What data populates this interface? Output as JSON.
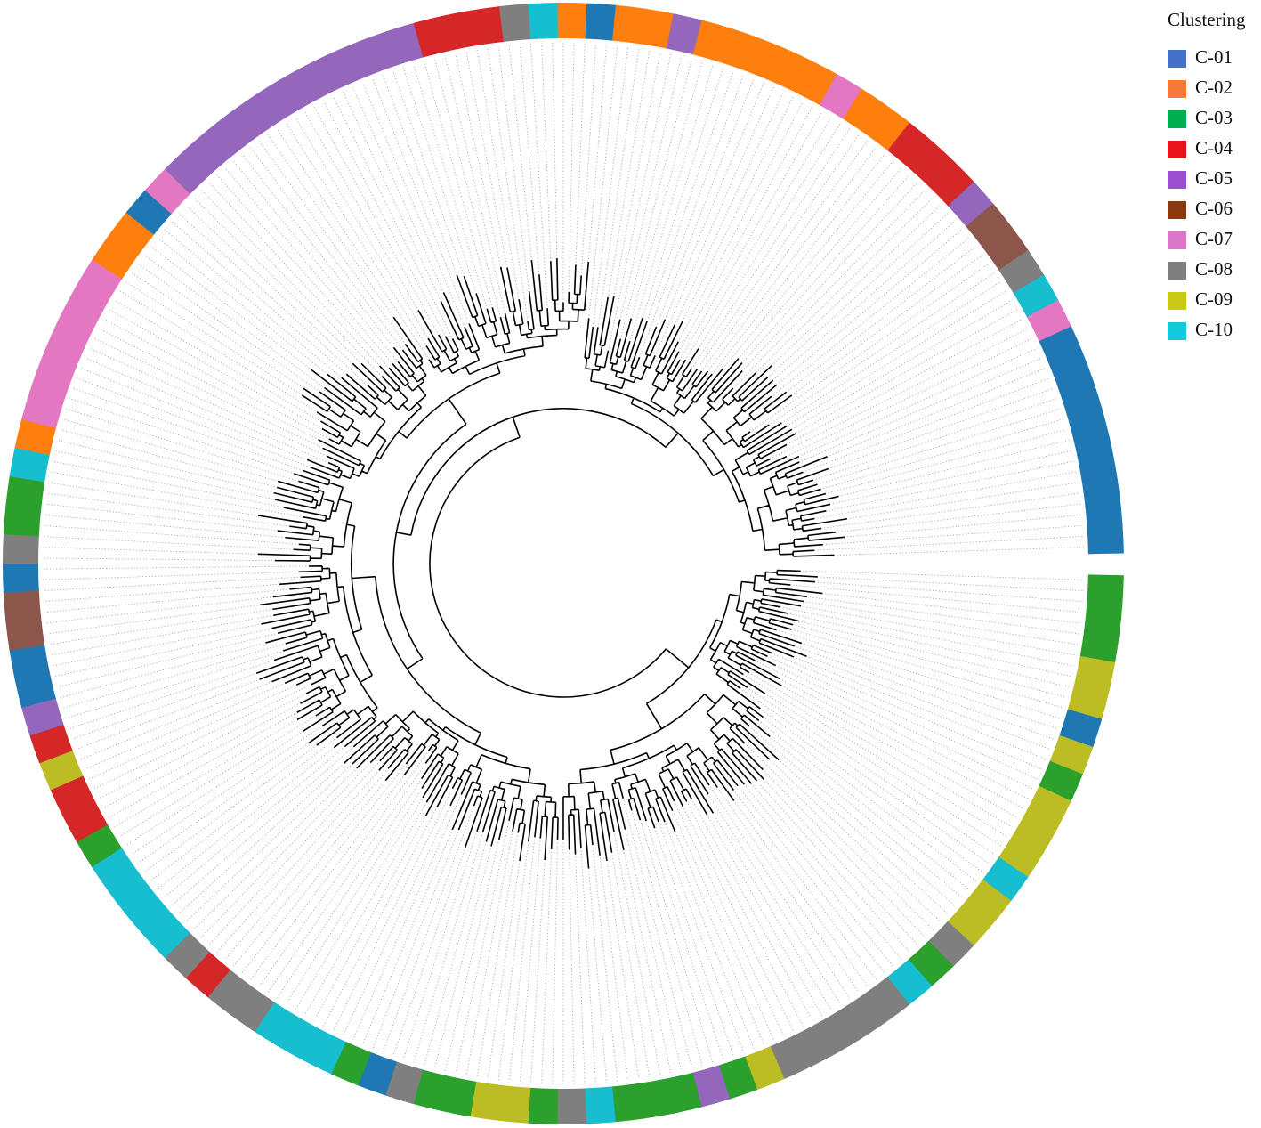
{
  "legend": {
    "title": "Clustering",
    "items": [
      {
        "name": "C-01",
        "color": "#4472c4",
        "ring_color": "#1f77b4"
      },
      {
        "name": "C-02",
        "color": "#f4793b",
        "ring_color": "#ff7f0e"
      },
      {
        "name": "C-03",
        "color": "#00b050",
        "ring_color": "#2ca02c"
      },
      {
        "name": "C-04",
        "color": "#e8141c",
        "ring_color": "#d62728"
      },
      {
        "name": "C-05",
        "color": "#9a4fce",
        "ring_color": "#9467bd"
      },
      {
        "name": "C-06",
        "color": "#8b3a0f",
        "ring_color": "#8c564b"
      },
      {
        "name": "C-07",
        "color": "#d977c9",
        "ring_color": "#e377c2"
      },
      {
        "name": "C-08",
        "color": "#7f7f7f",
        "ring_color": "#7f7f7f"
      },
      {
        "name": "C-09",
        "color": "#c9c814",
        "ring_color": "#bcbd22"
      },
      {
        "name": "C-10",
        "color": "#14c9d9",
        "ring_color": "#17becf"
      }
    ]
  },
  "ring": [
    "C-03",
    "C-03",
    "C-03",
    "C-09",
    "C-09",
    "C-01",
    "C-09",
    "C-03",
    "C-09",
    "C-09",
    "C-09",
    "C-10",
    "C-09",
    "C-09",
    "C-08",
    "C-03",
    "C-10",
    "C-08",
    "C-08",
    "C-08",
    "C-08",
    "C-08",
    "C-09",
    "C-03",
    "C-05",
    "C-03",
    "C-03",
    "C-03",
    "C-10",
    "C-08",
    "C-03",
    "C-09",
    "C-09",
    "C-03",
    "C-03",
    "C-08",
    "C-01",
    "C-03",
    "C-10",
    "C-10",
    "C-10",
    "C-08",
    "C-08",
    "C-04",
    "C-08",
    "C-10",
    "C-10",
    "C-10",
    "C-10",
    "C-03",
    "C-04",
    "C-04",
    "C-09",
    "C-04",
    "C-05",
    "C-01",
    "C-01",
    "C-06",
    "C-06",
    "C-01",
    "C-08",
    "C-03",
    "C-03",
    "C-10",
    "C-02",
    "C-07",
    "C-07",
    "C-07",
    "C-07",
    "C-07",
    "C-07",
    "C-02",
    "C-02",
    "C-01",
    "C-07",
    "C-05",
    "C-05",
    "C-05",
    "C-05",
    "C-05",
    "C-05",
    "C-05",
    "C-05",
    "C-05",
    "C-05",
    "C-04",
    "C-04",
    "C-04",
    "C-08",
    "C-10",
    "C-02",
    "C-01",
    "C-02",
    "C-02",
    "C-05",
    "C-02",
    "C-02",
    "C-02",
    "C-02",
    "C-02",
    "C-07",
    "C-02",
    "C-02",
    "C-04",
    "C-04",
    "C-04",
    "C-05",
    "C-06",
    "C-06",
    "C-08",
    "C-10",
    "C-07",
    "C-01",
    "C-01",
    "C-01",
    "C-01",
    "C-01",
    "C-01",
    "C-01",
    "C-01"
  ]
}
